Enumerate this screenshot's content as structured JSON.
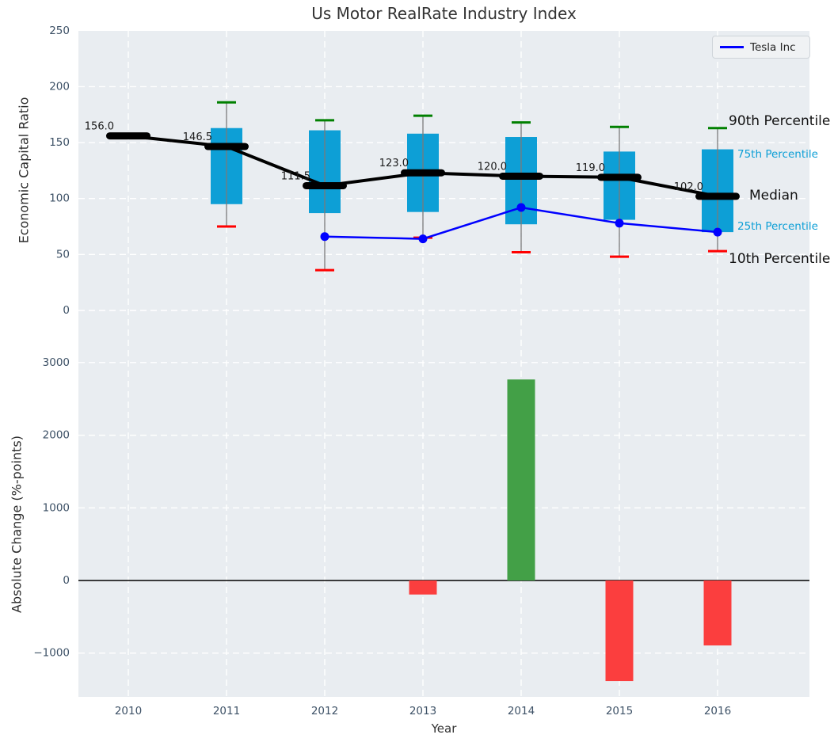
{
  "title": "Us Motor RealRate Industry Index",
  "xlabel": "Year",
  "legend": {
    "label": "Tesla Inc"
  },
  "annotations": {
    "p90": "90th Percentile",
    "p75": "75th Percentile",
    "median": "Median",
    "p25": "25th Percentile",
    "p10": "10th Percentile"
  },
  "colors": {
    "plot_background": "#e9edf1",
    "grid": "#ffffff",
    "box": "#0d9fd6",
    "median": "#000000",
    "tesla_line": "#0000ff",
    "p90_cap": "#008000",
    "p10_cap": "#ff0000",
    "whisker": "#7a7a7a",
    "bar_positive": "#43a047",
    "bar_negative": "#fb3e3e",
    "tick_label": "#3d5166",
    "value_label": "#1a1a1a",
    "zero_line": "#000000"
  },
  "chart_data": [
    {
      "type": "box+line",
      "title": "Us Motor RealRate Industry Index",
      "xlabel": "Year",
      "ylabel": "Economic Capital Ratio",
      "categories": [
        2010,
        2011,
        2012,
        2013,
        2014,
        2015,
        2016
      ],
      "ylim": [
        0,
        250
      ],
      "yticks": [
        0,
        50,
        100,
        150,
        200,
        250
      ],
      "grid": true,
      "legend_position": "upper right",
      "series": [
        {
          "name": "90th Percentile",
          "role": "p90",
          "values": [
            null,
            186,
            170,
            174,
            168,
            164,
            163
          ]
        },
        {
          "name": "75th Percentile",
          "role": "p75",
          "values": [
            null,
            163,
            161,
            158,
            155,
            142,
            144
          ]
        },
        {
          "name": "Median",
          "role": "median",
          "values": [
            156.0,
            146.5,
            111.5,
            123.0,
            120.0,
            119.0,
            102.0
          ]
        },
        {
          "name": "25th Percentile",
          "role": "p25",
          "values": [
            null,
            95,
            87,
            88,
            77,
            81,
            70
          ]
        },
        {
          "name": "10th Percentile",
          "role": "p10",
          "values": [
            null,
            75,
            36,
            65,
            52,
            48,
            53
          ]
        },
        {
          "name": "Tesla Inc",
          "role": "company",
          "values": [
            null,
            null,
            66,
            64,
            92,
            78,
            70
          ]
        }
      ],
      "median_labels": [
        "156.0",
        "146.5",
        "111.5",
        "123.0",
        "120.0",
        "119.0",
        "102.0"
      ]
    },
    {
      "type": "bar",
      "xlabel": "Year",
      "ylabel": "Absolute Change (%-points)",
      "categories": [
        2010,
        2011,
        2012,
        2013,
        2014,
        2015,
        2016
      ],
      "values": [
        null,
        null,
        null,
        -193,
        2767,
        -1385,
        -894
      ],
      "yticks": [
        -1000,
        0,
        1000,
        2000,
        3000
      ],
      "ylim": [
        -1600,
        3200
      ],
      "grid": true
    }
  ]
}
